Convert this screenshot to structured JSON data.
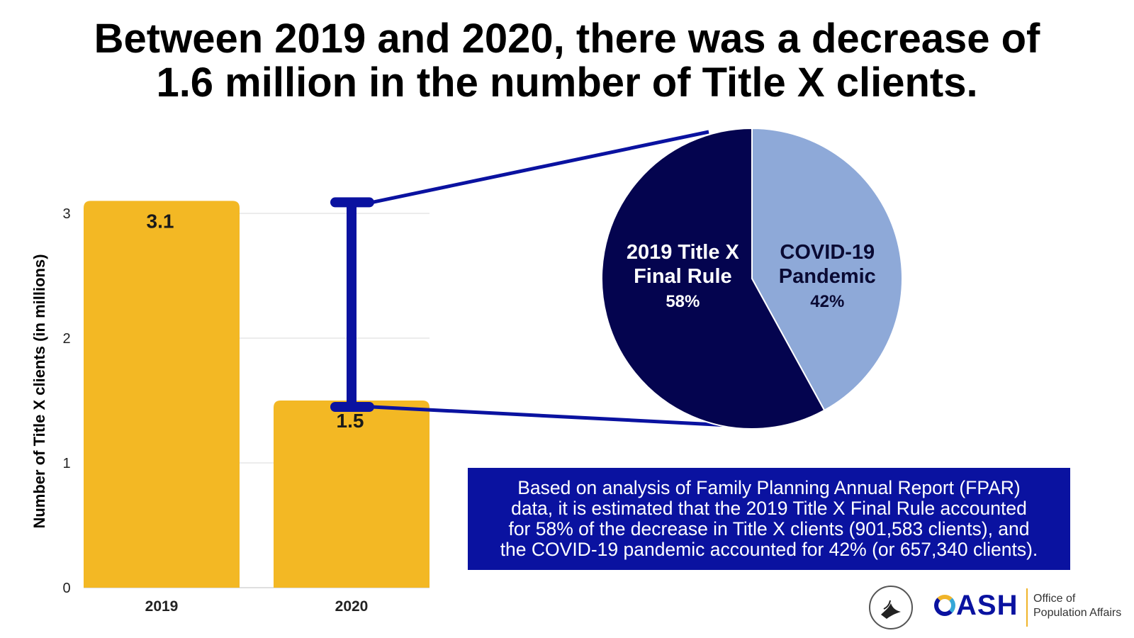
{
  "headline": {
    "line1": "Between 2019 and 2020, there was a decrease of",
    "line2": "1.6 million in the number of Title X clients."
  },
  "chart_data": [
    {
      "type": "bar",
      "categories": [
        "2019",
        "2020"
      ],
      "values": [
        3.1,
        1.5
      ],
      "data_labels": [
        "3.1",
        "1.5"
      ],
      "ylabel": "Number of Title X clients (in millions)",
      "ylim": [
        0,
        3
      ],
      "yticks": [
        0,
        1,
        2,
        3
      ],
      "grid": true,
      "bar_color": "#f3b824"
    },
    {
      "type": "pie",
      "slices": [
        {
          "label_line1": "COVID-19",
          "label_line2": "Pandemic",
          "value": 42,
          "value_label": "42%",
          "color": "#8ea9d8",
          "text_color": "#0a0a33"
        },
        {
          "label_line1": "2019 Title X",
          "label_line2": "Final Rule",
          "value": 58,
          "value_label": "58%",
          "color": "#04044f",
          "text_color": "#ffffff"
        }
      ]
    }
  ],
  "note": {
    "line1": "Based on analysis of Family Planning Annual Report (FPAR)",
    "line2": "data, it is estimated that the 2019 Title X Final Rule accounted",
    "line3": "for 58% of the decrease in Title X clients (901,583 clients), and",
    "line4": "the COVID-19 pandemic accounted for 42% (or 657,340 clients)."
  },
  "logos": {
    "oash_rest": "ASH",
    "office_line1": "Office of",
    "office_line2": "Population Affairs"
  },
  "colors": {
    "bar": "#f3b824",
    "connector": "#0a12a0",
    "note_background": "#0a12a0",
    "pie_dark": "#04044f",
    "pie_light": "#8ea9d8"
  }
}
